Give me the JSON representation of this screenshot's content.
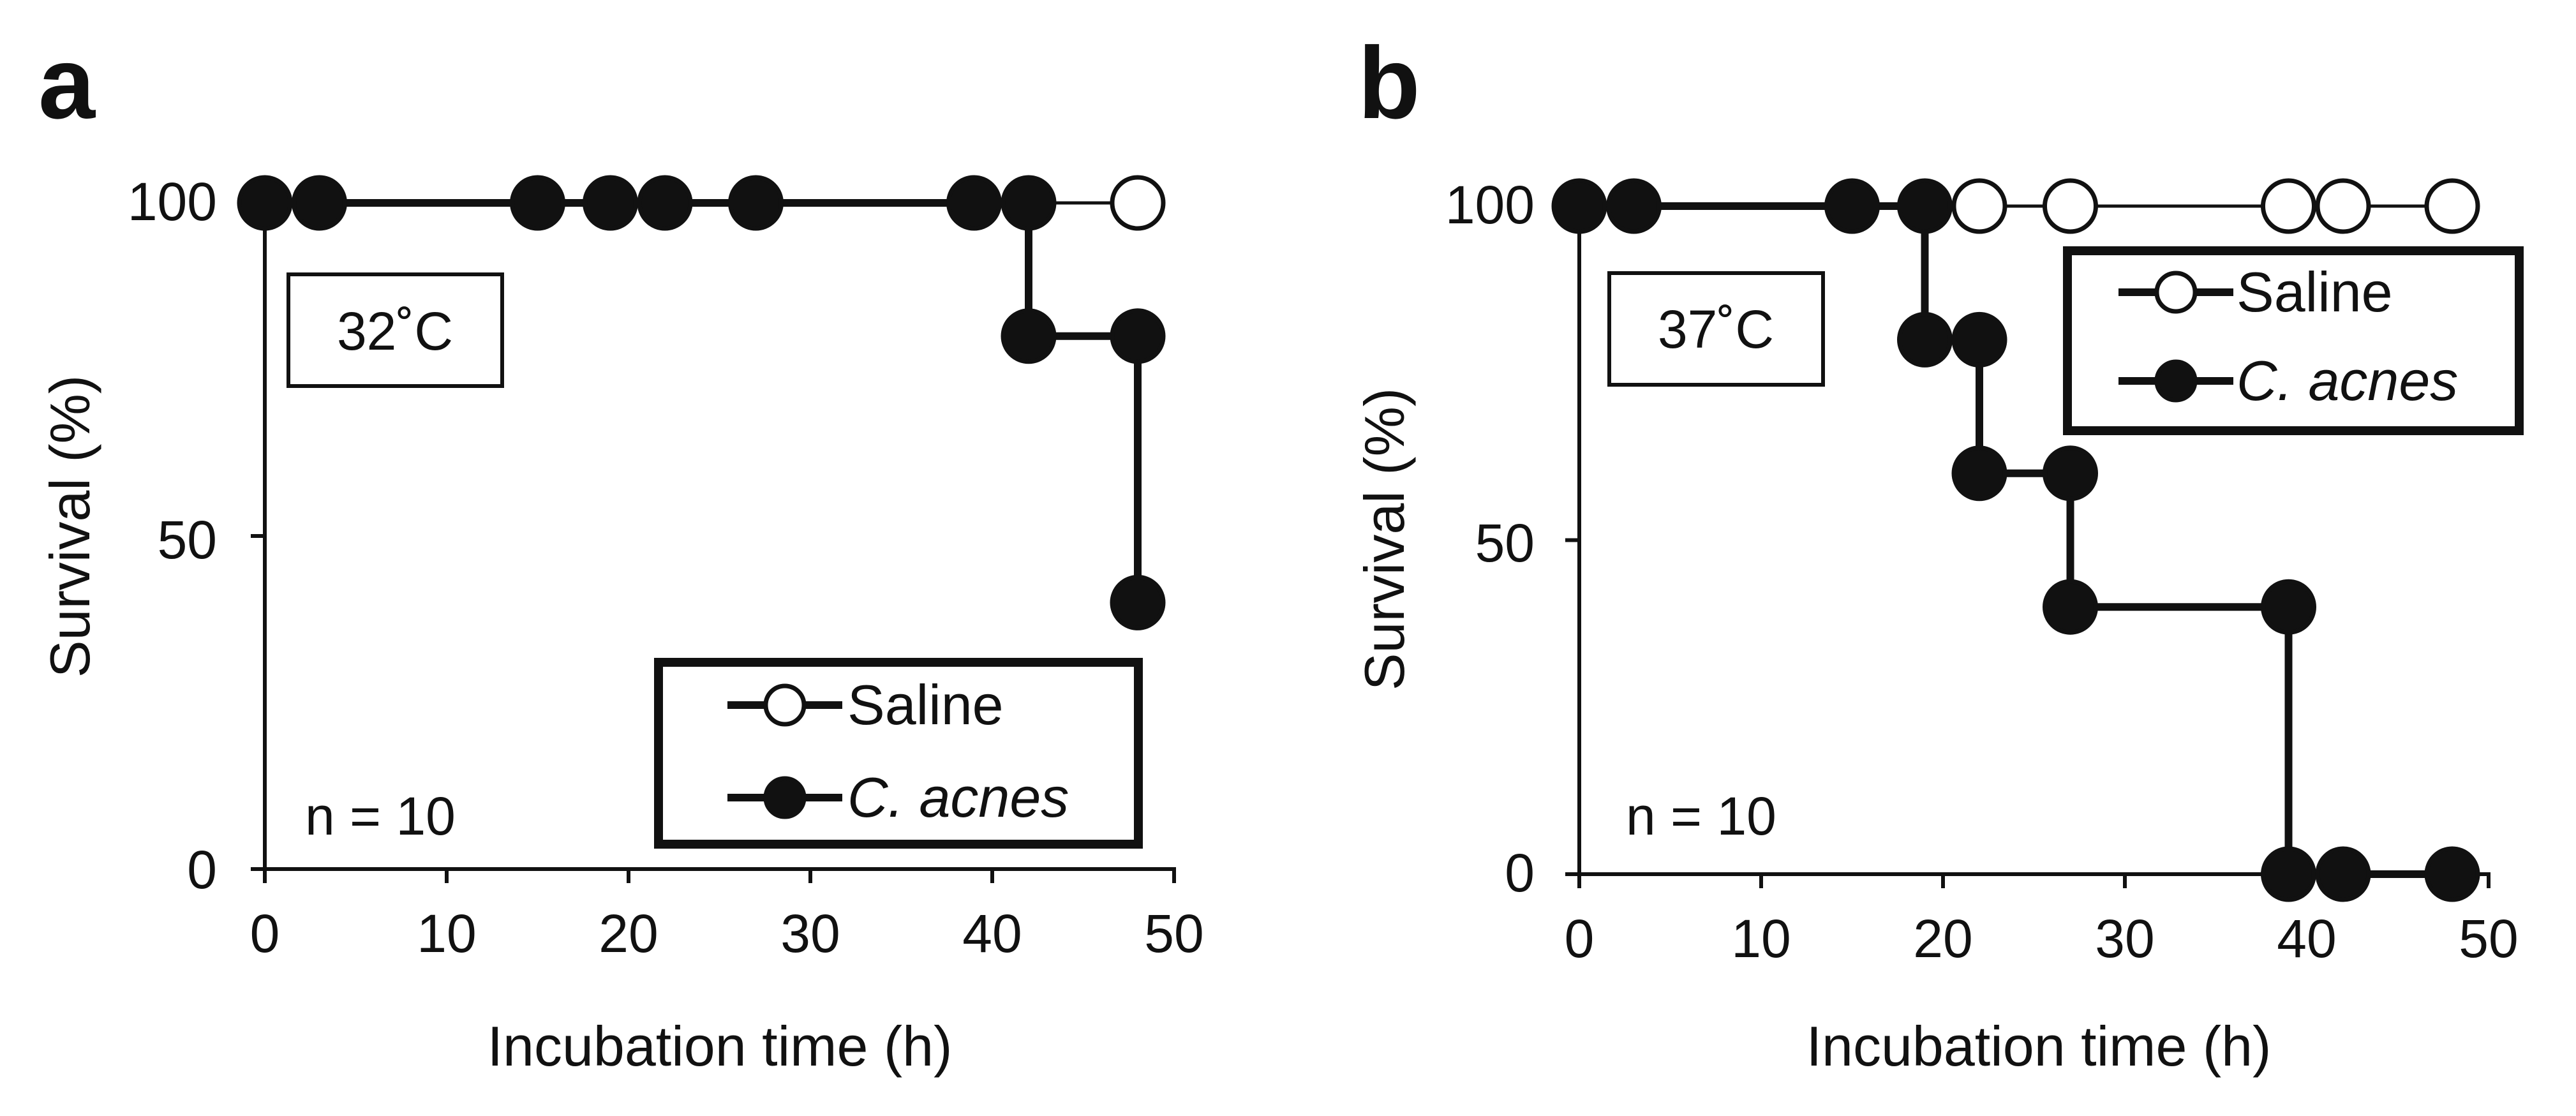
{
  "chart_data": [
    {
      "type": "line",
      "panel_label": "a",
      "temperature_label": "32˚C",
      "n_label": "n = 10",
      "xlabel": "Incubation time (h)",
      "ylabel": "Survival (%)",
      "xlim": [
        0,
        50
      ],
      "ylim": [
        0,
        100
      ],
      "x_ticks": [
        "0",
        "10",
        "20",
        "30",
        "40",
        "50"
      ],
      "y_ticks": [
        "0",
        "50",
        "100"
      ],
      "legend_position": "bottom-right",
      "series": [
        {
          "name": "Saline",
          "marker": "open-circle",
          "step": [
            [
              0,
              100
            ],
            [
              48,
              100
            ]
          ],
          "points": [
            [
              48,
              100
            ]
          ]
        },
        {
          "name": "C. acnes",
          "italic": true,
          "marker": "filled-circle",
          "step": [
            [
              0,
              100
            ],
            [
              42,
              100
            ],
            [
              42,
              80
            ],
            [
              48,
              80
            ],
            [
              48,
              40
            ]
          ],
          "points": [
            [
              0,
              100
            ],
            [
              3,
              100
            ],
            [
              15,
              100
            ],
            [
              19,
              100
            ],
            [
              22,
              100
            ],
            [
              27,
              100
            ],
            [
              39,
              100
            ],
            [
              42,
              100
            ],
            [
              42,
              80
            ],
            [
              48,
              80
            ],
            [
              48,
              40
            ]
          ]
        }
      ]
    },
    {
      "type": "line",
      "panel_label": "b",
      "temperature_label": "37˚C",
      "n_label": "n = 10",
      "xlabel": "Incubation time (h)",
      "ylabel": "Survival (%)",
      "xlim": [
        0,
        50
      ],
      "ylim": [
        0,
        100
      ],
      "x_ticks": [
        "0",
        "10",
        "20",
        "30",
        "40",
        "50"
      ],
      "y_ticks": [
        "0",
        "50",
        "100"
      ],
      "legend_position": "top-right",
      "series": [
        {
          "name": "Saline",
          "marker": "open-circle",
          "step": [
            [
              0,
              100
            ],
            [
              48,
              100
            ]
          ],
          "points": [
            [
              22,
              100
            ],
            [
              27,
              100
            ],
            [
              39,
              100
            ],
            [
              42,
              100
            ],
            [
              48,
              100
            ]
          ]
        },
        {
          "name": "C. acnes",
          "italic": true,
          "marker": "filled-circle",
          "step": [
            [
              0,
              100
            ],
            [
              19,
              100
            ],
            [
              19,
              80
            ],
            [
              22,
              80
            ],
            [
              22,
              60
            ],
            [
              27,
              60
            ],
            [
              27,
              40
            ],
            [
              39,
              40
            ],
            [
              39,
              0
            ],
            [
              48,
              0
            ]
          ],
          "points": [
            [
              0,
              100
            ],
            [
              3,
              100
            ],
            [
              15,
              100
            ],
            [
              19,
              100
            ],
            [
              19,
              80
            ],
            [
              22,
              80
            ],
            [
              22,
              60
            ],
            [
              27,
              60
            ],
            [
              27,
              40
            ],
            [
              39,
              40
            ],
            [
              39,
              0
            ],
            [
              42,
              0
            ],
            [
              48,
              0
            ]
          ]
        }
      ]
    }
  ]
}
